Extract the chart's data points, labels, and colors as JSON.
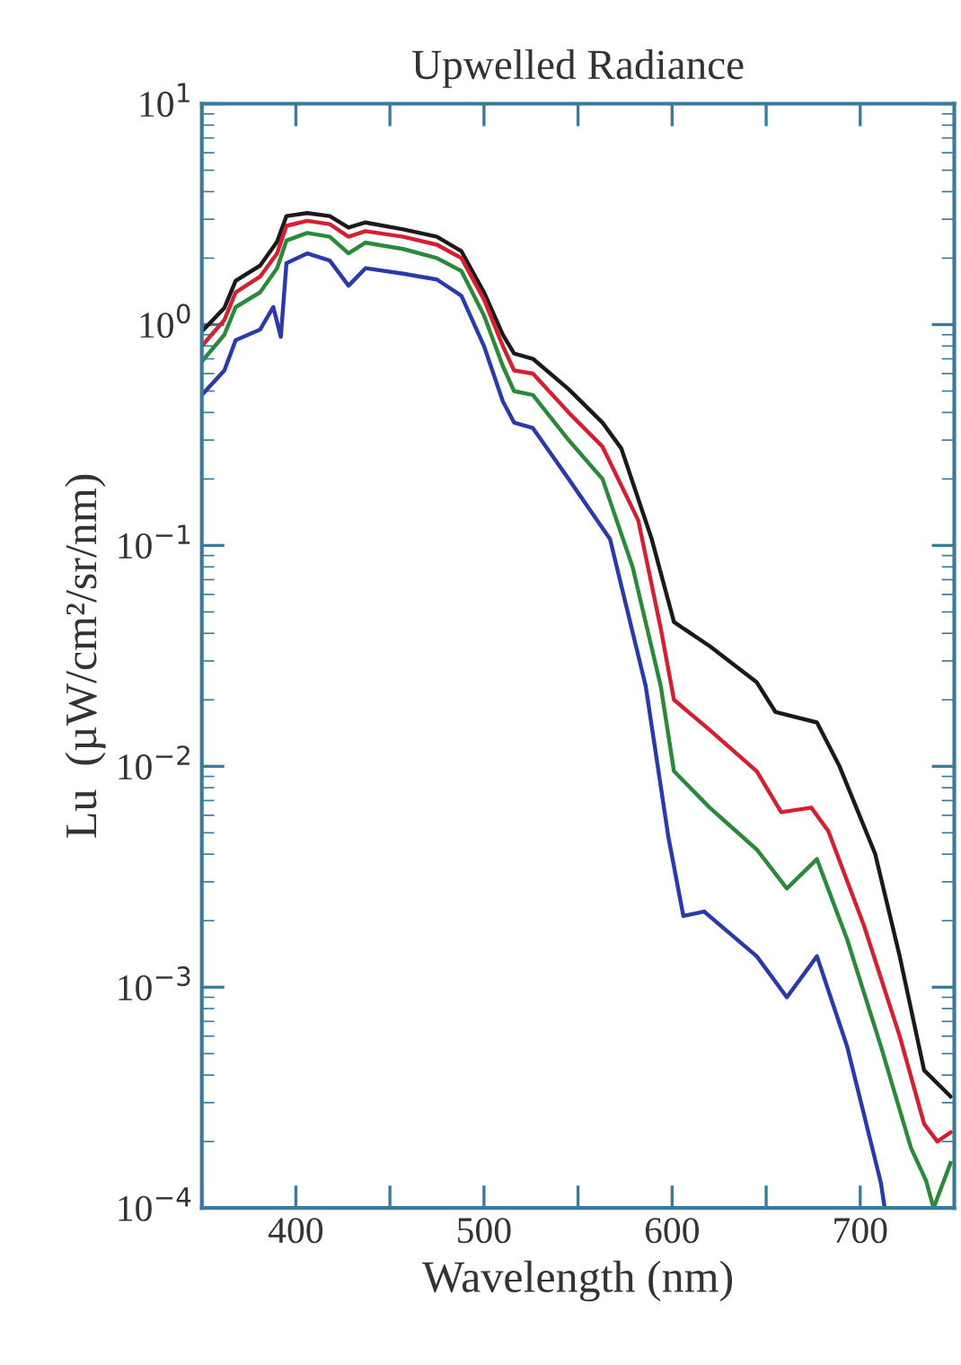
{
  "chart_data": {
    "type": "line",
    "title": "Upwelled Radiance",
    "xlabel": "Wavelength (nm)",
    "ylabel": "Lu  (µW/cm²/sr/nm)",
    "log": "y",
    "xlim": [
      350,
      750
    ],
    "ylim": [
      0.0001,
      10
    ],
    "xticks": [
      {
        "value": 350,
        "label": null
      },
      400,
      {
        "value": 450,
        "label": null
      },
      500,
      {
        "value": 550,
        "label": null
      },
      600,
      {
        "value": 650,
        "label": null
      },
      700
    ],
    "yticks": [
      {
        "value": 0.0001,
        "label": "10$^{−4}$"
      },
      {
        "value": 0.001,
        "label": "10$^{−3}$"
      },
      {
        "value": 0.01,
        "label": "10$^{−2}$"
      },
      {
        "value": 0.1,
        "label": "10$^{−1}$"
      },
      {
        "value": 1,
        "label": "10$^{0}$"
      },
      {
        "value": 10,
        "label": "10$^{1}$"
      }
    ],
    "grid": false,
    "legend": false,
    "line_style": "solid",
    "marker": "none",
    "series": [
      {
        "color": "#1a1a1a",
        "x": [
          350,
          362,
          368,
          381,
          390,
          395,
          406,
          418,
          428,
          437,
          457,
          475,
          488,
          500,
          510,
          516,
          526,
          545,
          563,
          573,
          589,
          601,
          620,
          645,
          655,
          677,
          689,
          708,
          721,
          734,
          748
        ],
        "values": [
          0.93,
          1.19,
          1.58,
          1.85,
          2.37,
          3.1,
          3.2,
          3.1,
          2.75,
          2.9,
          2.7,
          2.5,
          2.15,
          1.4,
          0.9,
          0.74,
          0.7,
          0.51,
          0.36,
          0.275,
          0.108,
          0.045,
          0.035,
          0.024,
          0.0176,
          0.0158,
          0.01,
          0.004,
          0.00138,
          0.00042,
          0.00032
        ]
      },
      {
        "color": "#d42030",
        "x": [
          350,
          362,
          368,
          381,
          390,
          395,
          406,
          418,
          428,
          437,
          457,
          475,
          488,
          500,
          510,
          516,
          526,
          545,
          563,
          582,
          594,
          601,
          620,
          645,
          658,
          674,
          683,
          702,
          721,
          734,
          741,
          748
        ],
        "values": [
          0.8,
          1.05,
          1.4,
          1.65,
          2.1,
          2.8,
          2.95,
          2.85,
          2.5,
          2.65,
          2.5,
          2.3,
          2.0,
          1.3,
          0.8,
          0.62,
          0.6,
          0.4,
          0.28,
          0.13,
          0.042,
          0.02,
          0.0146,
          0.0095,
          0.0062,
          0.0065,
          0.0051,
          0.0019,
          0.0006,
          0.00024,
          0.0002,
          0.00022
        ]
      },
      {
        "color": "#2a8a3a",
        "x": [
          350,
          362,
          368,
          381,
          390,
          395,
          406,
          418,
          428,
          437,
          457,
          475,
          488,
          500,
          510,
          516,
          526,
          545,
          563,
          579,
          594,
          601,
          620,
          645,
          661,
          677,
          693,
          711,
          727,
          735,
          739,
          748
        ],
        "values": [
          0.68,
          0.9,
          1.2,
          1.4,
          1.8,
          2.4,
          2.6,
          2.5,
          2.1,
          2.35,
          2.2,
          2.0,
          1.75,
          1.1,
          0.65,
          0.5,
          0.48,
          0.3,
          0.2,
          0.08,
          0.023,
          0.0095,
          0.0065,
          0.0042,
          0.0028,
          0.0038,
          0.00165,
          0.00054,
          0.000187,
          0.000133,
          0.0001,
          0.00016
        ]
      },
      {
        "color": "#2a3aaa",
        "x": [
          350,
          362,
          368,
          381,
          388,
          392,
          395,
          406,
          418,
          428,
          437,
          457,
          475,
          488,
          500,
          510,
          516,
          526,
          545,
          567,
          586,
          598,
          606,
          617,
          645,
          661,
          677,
          693,
          711,
          713
        ],
        "values": [
          0.48,
          0.62,
          0.85,
          0.95,
          1.2,
          0.88,
          1.9,
          2.1,
          1.95,
          1.5,
          1.8,
          1.7,
          1.6,
          1.35,
          0.8,
          0.45,
          0.36,
          0.34,
          0.2,
          0.107,
          0.023,
          0.0048,
          0.0021,
          0.0022,
          0.00138,
          0.0009,
          0.00138,
          0.00054,
          0.00013,
          0.0001
        ]
      }
    ]
  }
}
